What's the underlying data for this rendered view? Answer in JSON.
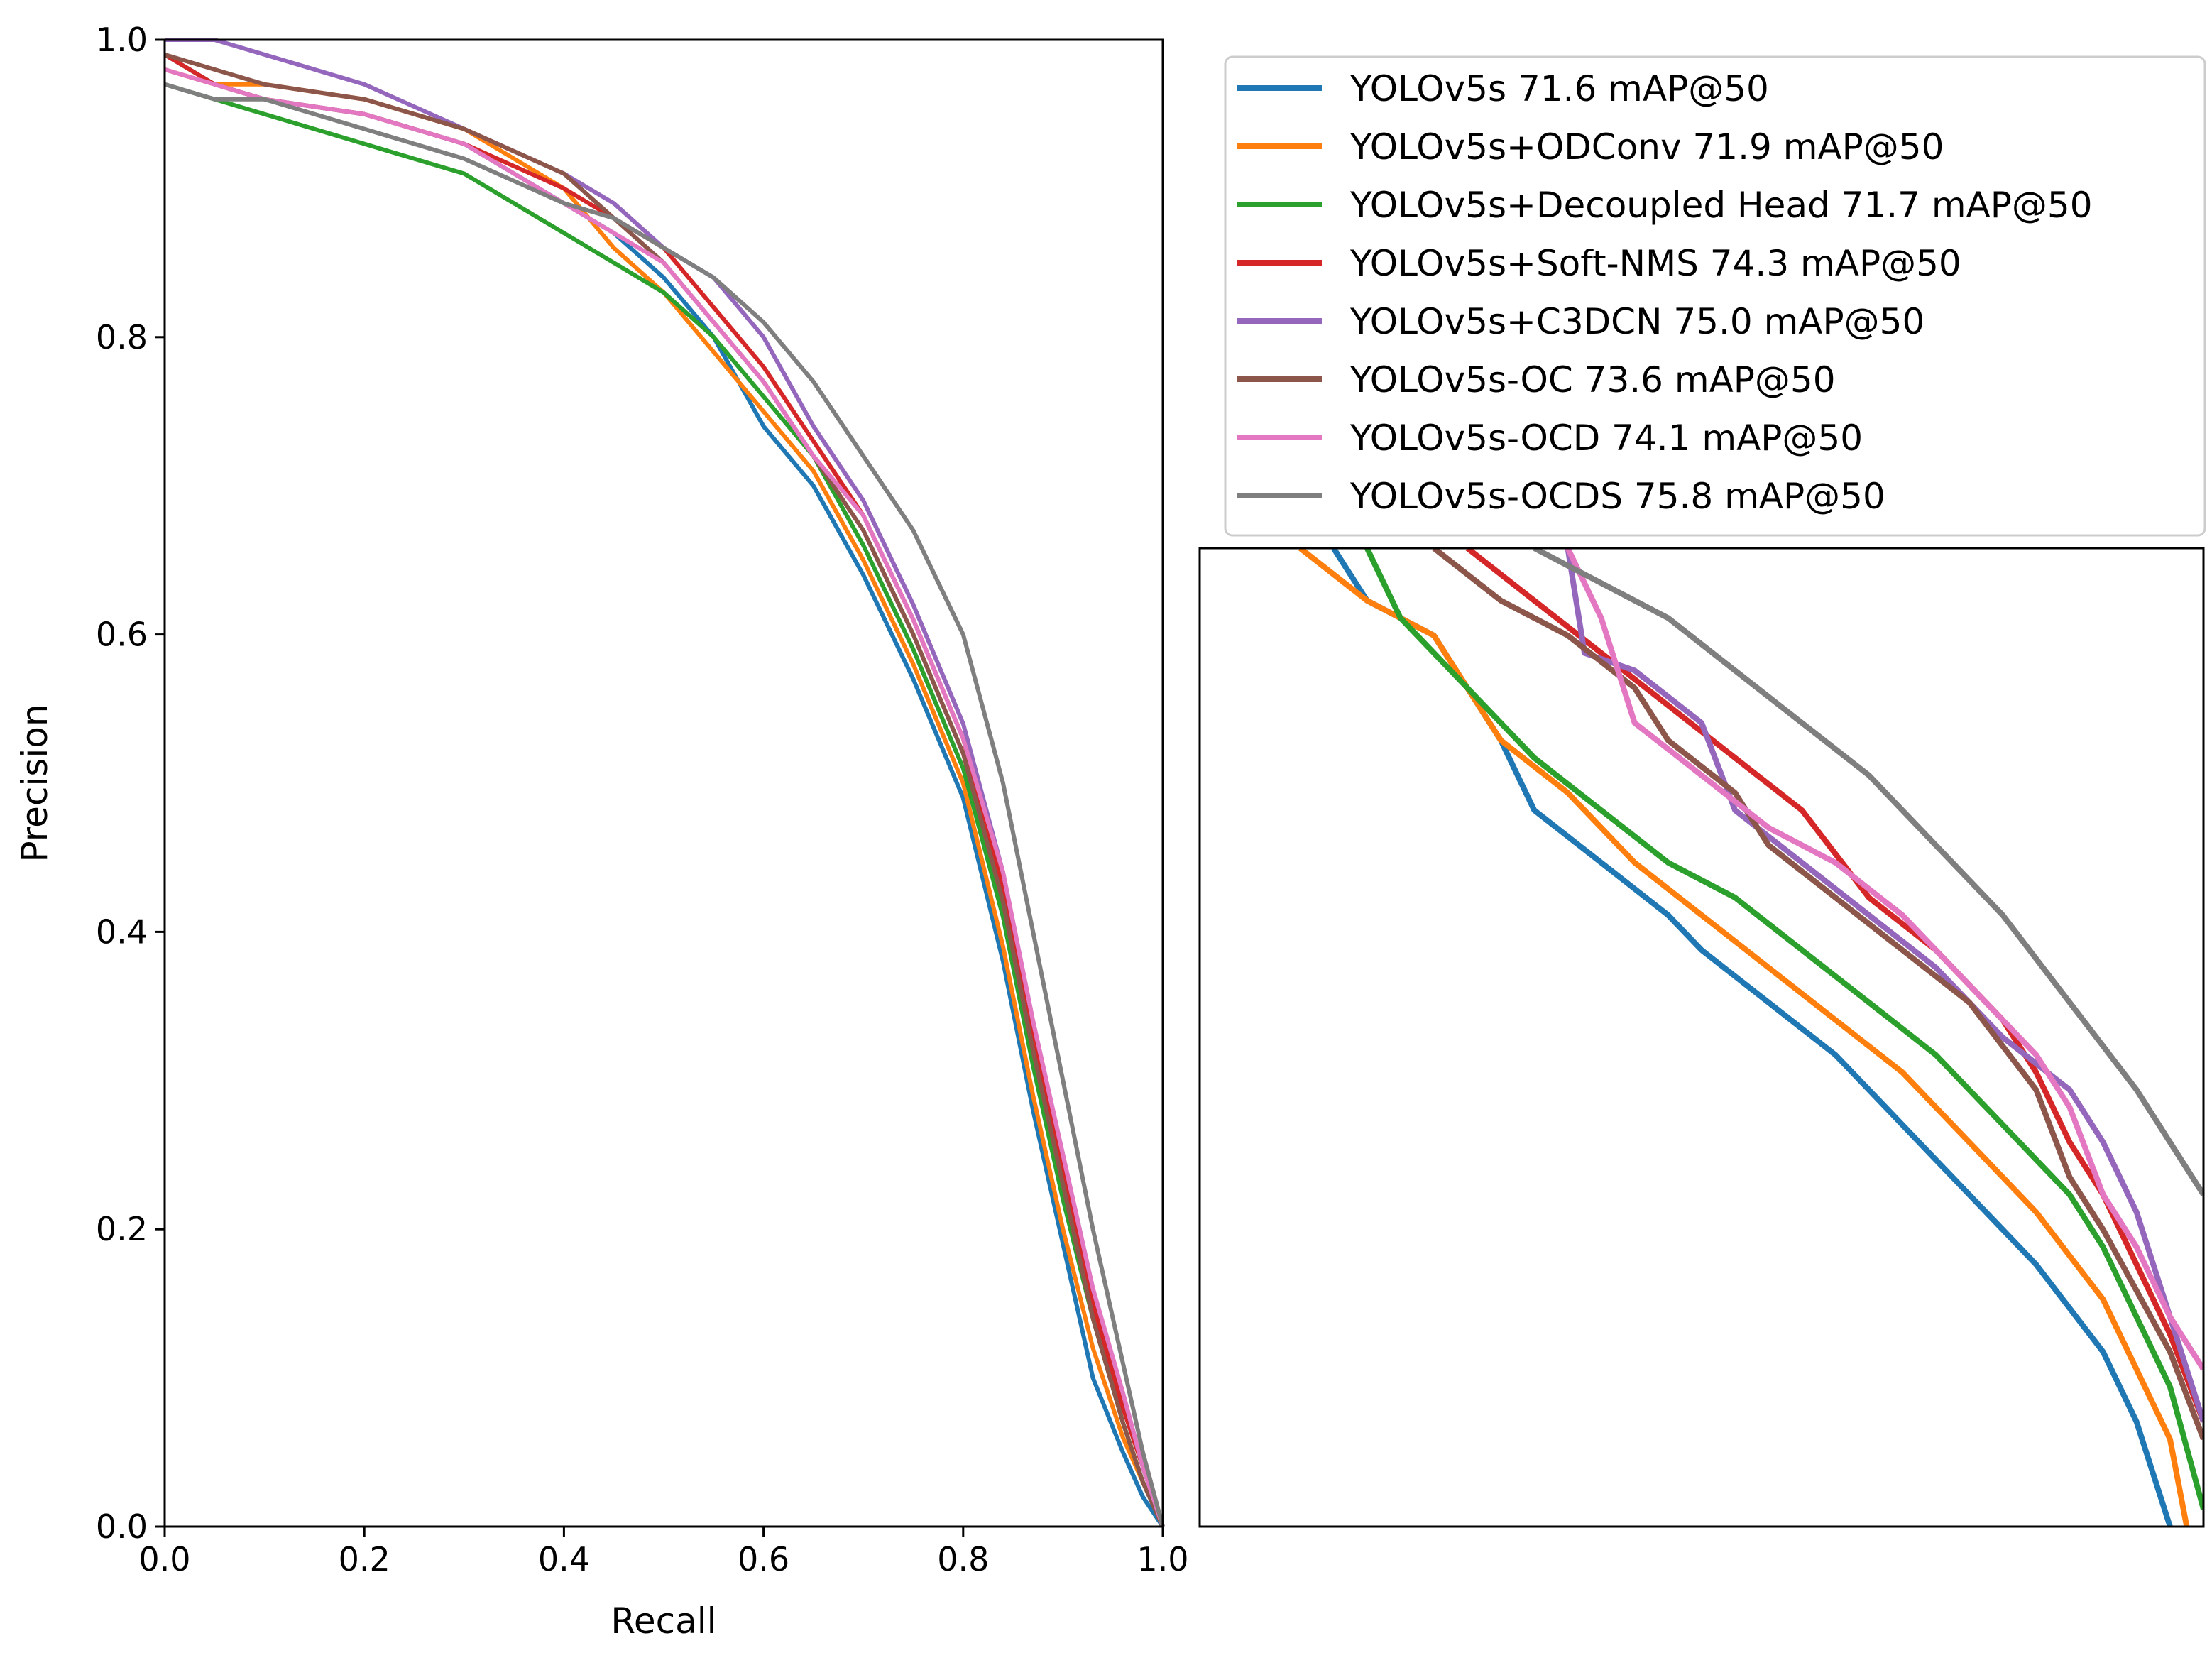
{
  "chart_data": [
    {
      "type": "line",
      "name": "pr-curve-main",
      "xlabel": "Recall",
      "ylabel": "Precision",
      "xlim": [
        0.0,
        1.0
      ],
      "ylim": [
        0.0,
        1.0
      ],
      "xticks": [
        "0.0",
        "0.2",
        "0.4",
        "0.6",
        "0.8",
        "1.0"
      ],
      "yticks": [
        "0.0",
        "0.2",
        "0.4",
        "0.6",
        "0.8",
        "1.0"
      ],
      "grid": false,
      "legend_position": "top-right",
      "series": [
        {
          "name": "YOLOv5s 71.6 mAP@50",
          "color": "#1f77b4",
          "x": [
            0,
            0.05,
            0.1,
            0.2,
            0.3,
            0.4,
            0.45,
            0.5,
            0.55,
            0.6,
            0.65,
            0.7,
            0.75,
            0.8,
            0.84,
            0.87,
            0.9,
            0.93,
            0.96,
            0.98,
            1.0
          ],
          "y": [
            0.99,
            0.97,
            0.96,
            0.95,
            0.93,
            0.89,
            0.87,
            0.84,
            0.8,
            0.74,
            0.7,
            0.64,
            0.57,
            0.49,
            0.38,
            0.28,
            0.19,
            0.1,
            0.05,
            0.02,
            0.0
          ]
        },
        {
          "name": "YOLOv5s+ODConv 71.9 mAP@50",
          "color": "#ff7f0e",
          "x": [
            0,
            0.05,
            0.1,
            0.2,
            0.3,
            0.4,
            0.45,
            0.5,
            0.55,
            0.6,
            0.65,
            0.7,
            0.75,
            0.8,
            0.84,
            0.87,
            0.9,
            0.93,
            0.96,
            0.98,
            1.0
          ],
          "y": [
            0.98,
            0.97,
            0.97,
            0.96,
            0.94,
            0.9,
            0.86,
            0.83,
            0.79,
            0.75,
            0.71,
            0.65,
            0.58,
            0.5,
            0.39,
            0.29,
            0.2,
            0.12,
            0.06,
            0.03,
            0.0
          ]
        },
        {
          "name": "YOLOv5s+Decoupled Head 71.7 mAP@50",
          "color": "#2ca02c",
          "x": [
            0,
            0.05,
            0.1,
            0.2,
            0.3,
            0.4,
            0.45,
            0.5,
            0.55,
            0.6,
            0.65,
            0.7,
            0.75,
            0.8,
            0.84,
            0.87,
            0.9,
            0.93,
            0.96,
            0.98,
            1.0
          ],
          "y": [
            0.97,
            0.96,
            0.95,
            0.93,
            0.91,
            0.87,
            0.85,
            0.83,
            0.8,
            0.76,
            0.72,
            0.66,
            0.59,
            0.51,
            0.41,
            0.31,
            0.22,
            0.14,
            0.07,
            0.03,
            0.0
          ]
        },
        {
          "name": "YOLOv5s+Soft-NMS 74.3 mAP@50",
          "color": "#d62728",
          "x": [
            0,
            0.05,
            0.1,
            0.2,
            0.3,
            0.4,
            0.45,
            0.5,
            0.55,
            0.6,
            0.65,
            0.7,
            0.75,
            0.8,
            0.84,
            0.87,
            0.9,
            0.93,
            0.96,
            0.98,
            1.0
          ],
          "y": [
            0.99,
            0.97,
            0.96,
            0.95,
            0.93,
            0.9,
            0.88,
            0.86,
            0.82,
            0.78,
            0.73,
            0.68,
            0.61,
            0.53,
            0.43,
            0.33,
            0.24,
            0.15,
            0.08,
            0.04,
            0.0
          ]
        },
        {
          "name": "YOLOv5s+C3DCN 75.0 mAP@50",
          "color": "#9467bd",
          "x": [
            0,
            0.05,
            0.1,
            0.2,
            0.3,
            0.4,
            0.45,
            0.5,
            0.55,
            0.6,
            0.65,
            0.7,
            0.75,
            0.8,
            0.84,
            0.87,
            0.9,
            0.93,
            0.96,
            0.98,
            1.0
          ],
          "y": [
            1.0,
            1.0,
            0.99,
            0.97,
            0.94,
            0.91,
            0.89,
            0.86,
            0.84,
            0.8,
            0.74,
            0.69,
            0.62,
            0.54,
            0.44,
            0.34,
            0.25,
            0.16,
            0.09,
            0.04,
            0.0
          ]
        },
        {
          "name": "YOLOv5s-OC 73.6 mAP@50",
          "color": "#8c564b",
          "x": [
            0,
            0.05,
            0.1,
            0.2,
            0.3,
            0.4,
            0.45,
            0.5,
            0.55,
            0.6,
            0.65,
            0.7,
            0.75,
            0.8,
            0.84,
            0.87,
            0.9,
            0.93,
            0.96,
            0.98,
            1.0
          ],
          "y": [
            0.99,
            0.98,
            0.97,
            0.96,
            0.94,
            0.91,
            0.88,
            0.85,
            0.81,
            0.77,
            0.72,
            0.67,
            0.6,
            0.52,
            0.42,
            0.32,
            0.23,
            0.14,
            0.07,
            0.03,
            0.0
          ]
        },
        {
          "name": "YOLOv5s-OCD 74.1 mAP@50",
          "color": "#e377c2",
          "x": [
            0,
            0.05,
            0.1,
            0.2,
            0.3,
            0.4,
            0.45,
            0.5,
            0.55,
            0.6,
            0.65,
            0.7,
            0.75,
            0.8,
            0.84,
            0.87,
            0.9,
            0.93,
            0.96,
            0.98,
            1.0
          ],
          "y": [
            0.98,
            0.97,
            0.96,
            0.95,
            0.93,
            0.89,
            0.87,
            0.85,
            0.81,
            0.77,
            0.72,
            0.68,
            0.61,
            0.53,
            0.44,
            0.34,
            0.25,
            0.16,
            0.09,
            0.04,
            0.0
          ]
        },
        {
          "name": "YOLOv5s-OCDS 75.8 mAP@50",
          "color": "#7f7f7f",
          "x": [
            0,
            0.05,
            0.1,
            0.2,
            0.3,
            0.4,
            0.45,
            0.5,
            0.55,
            0.6,
            0.65,
            0.7,
            0.75,
            0.8,
            0.84,
            0.87,
            0.9,
            0.93,
            0.96,
            0.98,
            1.0
          ],
          "y": [
            0.97,
            0.96,
            0.96,
            0.94,
            0.92,
            0.89,
            0.88,
            0.86,
            0.84,
            0.81,
            0.77,
            0.72,
            0.67,
            0.6,
            0.5,
            0.4,
            0.3,
            0.2,
            0.11,
            0.05,
            0.0
          ]
        }
      ]
    },
    {
      "type": "line",
      "name": "pr-curve-zoom-inset",
      "description_role": "zoomed view of the main curves, no tick labels",
      "xlim": [
        0.55,
        0.85
      ],
      "ylim": [
        0.3,
        0.86
      ],
      "series": [
        {
          "name": "YOLOv5s 71.6 mAP@50",
          "color": "#1f77b4",
          "x": [
            0.59,
            0.6,
            0.62,
            0.64,
            0.65,
            0.67,
            0.69,
            0.7,
            0.72,
            0.74,
            0.75,
            0.77,
            0.79,
            0.8,
            0.82,
            0.83,
            0.835,
            0.84
          ],
          "y": [
            0.86,
            0.83,
            0.81,
            0.75,
            0.71,
            0.68,
            0.65,
            0.63,
            0.6,
            0.57,
            0.55,
            0.51,
            0.47,
            0.45,
            0.4,
            0.36,
            0.33,
            0.3
          ]
        },
        {
          "name": "YOLOv5s+ODConv 71.9 mAP@50",
          "color": "#ff7f0e",
          "x": [
            0.58,
            0.6,
            0.62,
            0.64,
            0.66,
            0.68,
            0.7,
            0.72,
            0.74,
            0.76,
            0.78,
            0.8,
            0.82,
            0.83,
            0.84,
            0.845
          ],
          "y": [
            0.86,
            0.83,
            0.81,
            0.75,
            0.72,
            0.68,
            0.65,
            0.62,
            0.59,
            0.56,
            0.52,
            0.48,
            0.43,
            0.39,
            0.35,
            0.3
          ]
        },
        {
          "name": "YOLOv5s+Decoupled Head 71.7 mAP@50",
          "color": "#2ca02c",
          "x": [
            0.6,
            0.61,
            0.63,
            0.65,
            0.67,
            0.69,
            0.71,
            0.73,
            0.75,
            0.77,
            0.79,
            0.81,
            0.82,
            0.83,
            0.84,
            0.85
          ],
          "y": [
            0.86,
            0.82,
            0.78,
            0.74,
            0.71,
            0.68,
            0.66,
            0.63,
            0.6,
            0.57,
            0.53,
            0.49,
            0.46,
            0.42,
            0.38,
            0.31
          ]
        },
        {
          "name": "YOLOv5s+Soft-NMS 74.3 mAP@50",
          "color": "#d62728",
          "x": [
            0.63,
            0.65,
            0.67,
            0.69,
            0.71,
            0.73,
            0.75,
            0.77,
            0.79,
            0.8,
            0.81,
            0.82,
            0.83,
            0.84,
            0.85
          ],
          "y": [
            0.86,
            0.83,
            0.8,
            0.77,
            0.74,
            0.71,
            0.66,
            0.63,
            0.59,
            0.56,
            0.52,
            0.49,
            0.45,
            0.41,
            0.36
          ]
        },
        {
          "name": "YOLOv5s+C3DCN 75.0 mAP@50",
          "color": "#9467bd",
          "x": [
            0.66,
            0.665,
            0.68,
            0.7,
            0.71,
            0.73,
            0.75,
            0.77,
            0.79,
            0.81,
            0.82,
            0.83,
            0.84,
            0.85
          ],
          "y": [
            0.86,
            0.8,
            0.79,
            0.76,
            0.71,
            0.68,
            0.65,
            0.62,
            0.58,
            0.55,
            0.52,
            0.48,
            0.42,
            0.36
          ]
        },
        {
          "name": "YOLOv5s-OC 73.6 mAP@50",
          "color": "#8c564b",
          "x": [
            0.62,
            0.64,
            0.66,
            0.68,
            0.69,
            0.71,
            0.72,
            0.74,
            0.76,
            0.78,
            0.8,
            0.81,
            0.82,
            0.84,
            0.85
          ],
          "y": [
            0.86,
            0.83,
            0.81,
            0.78,
            0.75,
            0.72,
            0.69,
            0.66,
            0.63,
            0.6,
            0.55,
            0.5,
            0.47,
            0.4,
            0.35
          ]
        },
        {
          "name": "YOLOv5s-OCD 74.1 mAP@50",
          "color": "#e377c2",
          "x": [
            0.66,
            0.67,
            0.68,
            0.7,
            0.72,
            0.74,
            0.76,
            0.78,
            0.8,
            0.81,
            0.82,
            0.83,
            0.84,
            0.85
          ],
          "y": [
            0.86,
            0.82,
            0.76,
            0.73,
            0.7,
            0.68,
            0.65,
            0.61,
            0.57,
            0.54,
            0.49,
            0.46,
            0.42,
            0.39
          ]
        },
        {
          "name": "YOLOv5s-OCDS 75.8 mAP@50",
          "color": "#7f7f7f",
          "x": [
            0.65,
            0.67,
            0.69,
            0.71,
            0.73,
            0.75,
            0.77,
            0.79,
            0.81,
            0.83,
            0.85
          ],
          "y": [
            0.86,
            0.84,
            0.82,
            0.79,
            0.76,
            0.73,
            0.69,
            0.65,
            0.6,
            0.55,
            0.49
          ]
        }
      ]
    }
  ]
}
